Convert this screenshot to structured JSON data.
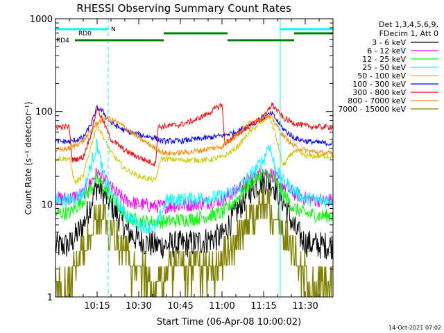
{
  "chart_data": {
    "type": "line",
    "title": "RHESSI Observing Summary Count Rates",
    "xlabel": "Start Time (06-Apr-08 10:00:02)",
    "ylabel": "Count Rate (s⁻¹ detector⁻¹)",
    "yscale": "log",
    "ylim": [
      1,
      1000
    ],
    "xlim_minutes": [
      0,
      100
    ],
    "y_ticks": [
      "1",
      "10",
      "100",
      "1000"
    ],
    "x_ticks": [
      {
        "label": "10:15",
        "minute": 15
      },
      {
        "label": "10:30",
        "minute": 30
      },
      {
        "label": "10:45",
        "minute": 45
      },
      {
        "label": "11:00",
        "minute": 60
      },
      {
        "label": "11:15",
        "minute": 75
      },
      {
        "label": "11:30",
        "minute": 90
      }
    ],
    "legend_header": [
      "Det 1,3,4,5,6,9,",
      "FDecim 1, Att 0"
    ],
    "legend_position": "right",
    "grid": false,
    "series": [
      {
        "name": "3 - 6 keV",
        "color": "#000000",
        "x": [
          0,
          5,
          10,
          15,
          20,
          25,
          30,
          36,
          40,
          50,
          60,
          65,
          70,
          75,
          78,
          82,
          86,
          90,
          95,
          100
        ],
        "y": [
          3.5,
          3.6,
          6,
          16,
          10,
          5.5,
          4,
          3.6,
          3.6,
          3.8,
          4.5,
          8,
          14,
          18,
          17,
          11,
          5.5,
          3.8,
          3.6,
          3.6
        ]
      },
      {
        "name": "6 - 12 keV",
        "color": "#ff00ff",
        "x": [
          0,
          5,
          10,
          15,
          20,
          25,
          30,
          36,
          40,
          50,
          60,
          65,
          70,
          75,
          78,
          82,
          86,
          90,
          95,
          100
        ],
        "y": [
          11.5,
          11.5,
          13,
          22,
          15,
          11,
          10,
          9.5,
          9.5,
          10,
          11,
          14,
          19,
          22,
          21,
          16,
          13,
          11.5,
          11,
          11
        ]
      },
      {
        "name": "12 - 25 keV",
        "color": "#00ff00",
        "x": [
          0,
          5,
          10,
          15,
          20,
          25,
          30,
          36,
          40,
          50,
          60,
          65,
          70,
          75,
          78,
          82,
          86,
          90,
          95,
          100
        ],
        "y": [
          8,
          8,
          11,
          19,
          12,
          7.5,
          6.5,
          6.5,
          6.5,
          7,
          8,
          11,
          17,
          21,
          20,
          13,
          9,
          8,
          7.5,
          7.5
        ]
      },
      {
        "name": "25 - 50 keV",
        "color": "#00ffff",
        "x": [
          0,
          5,
          10,
          13,
          15,
          17,
          20,
          25,
          30,
          36,
          40,
          50,
          60,
          65,
          70,
          75,
          77,
          79,
          82,
          86,
          90,
          95,
          100
        ],
        "y": [
          11,
          11,
          13,
          28,
          45,
          22,
          13,
          8,
          6,
          5.5,
          11,
          11.5,
          12,
          14,
          20,
          30,
          45,
          25,
          18,
          14,
          11.5,
          11,
          11
        ]
      },
      {
        "name": "50 - 100 keV",
        "color": "#cccc00",
        "x": [
          0,
          5,
          7,
          10,
          13,
          15,
          17,
          20,
          25,
          30,
          36,
          38,
          45,
          50,
          55,
          60,
          65,
          70,
          75,
          77,
          79,
          82,
          86,
          90,
          95,
          100
        ],
        "y": [
          31,
          31,
          17,
          20,
          45,
          72,
          55,
          36,
          24,
          20,
          18,
          31,
          30,
          30,
          30,
          32,
          40,
          60,
          80,
          90,
          60,
          26,
          38,
          33,
          33,
          33
        ]
      },
      {
        "name": "100 - 300 keV",
        "color": "#0000ff",
        "x": [
          0,
          5,
          10,
          13,
          15,
          17,
          20,
          25,
          30,
          36,
          38,
          45,
          50,
          55,
          60,
          65,
          70,
          75,
          78,
          82,
          86,
          90,
          95,
          100
        ],
        "y": [
          48,
          47,
          52,
          75,
          110,
          100,
          75,
          62,
          56,
          52,
          48,
          48,
          50,
          52,
          55,
          60,
          72,
          88,
          95,
          65,
          52,
          48,
          46,
          45
        ]
      },
      {
        "name": "300 - 800 keV",
        "color": "#ff0000",
        "x": [
          0,
          5,
          6,
          10,
          13,
          15,
          17,
          20,
          25,
          30,
          36,
          37,
          45,
          50,
          55,
          60,
          61,
          65,
          70,
          75,
          78,
          82,
          86,
          90,
          95,
          100
        ],
        "y": [
          68,
          68,
          30,
          32,
          60,
          110,
          80,
          50,
          38,
          32,
          27,
          68,
          72,
          80,
          95,
          120,
          45,
          55,
          70,
          85,
          120,
          85,
          75,
          70,
          68,
          68
        ]
      },
      {
        "name": "800 - 7000 keV",
        "color": "#ff8800",
        "x": [
          0,
          5,
          10,
          15,
          18,
          20,
          25,
          30,
          36,
          40,
          50,
          60,
          65,
          70,
          75,
          78,
          82,
          86,
          90,
          95,
          100
        ],
        "y": [
          38,
          40,
          48,
          75,
          85,
          82,
          68,
          52,
          40,
          35,
          37,
          42,
          55,
          75,
          90,
          85,
          55,
          42,
          38,
          36,
          35
        ]
      },
      {
        "name": "7000 - 15000 keV",
        "color": "#808000",
        "x": [
          0,
          5,
          10,
          15,
          20,
          25,
          30,
          36,
          40,
          50,
          60,
          65,
          70,
          75,
          78,
          82,
          86,
          90,
          95,
          100
        ],
        "y": [
          1.5,
          1.6,
          3,
          7,
          5,
          3,
          2,
          1.5,
          1.8,
          2,
          2.5,
          4,
          7,
          9,
          8,
          5,
          2.8,
          1.8,
          1.6,
          1.5
        ]
      }
    ],
    "event_lines": [
      {
        "minute": 19,
        "color": "#00ffff"
      },
      {
        "minute": 81,
        "color": "#00ffff"
      },
      {
        "minute": 100,
        "color": "#00ffff"
      }
    ],
    "solid_lines": [
      {
        "minute": 81,
        "color": "#00ffff"
      }
    ],
    "flag_bars": [
      {
        "label": "N",
        "color": "#00ffff",
        "row": 0,
        "segments": [
          [
            0,
            19
          ],
          [
            81,
            100
          ]
        ]
      },
      {
        "label": "RD0",
        "color": "#008000",
        "row": 1,
        "segments": [
          [
            39,
            62
          ],
          [
            86,
            100
          ]
        ]
      },
      {
        "label": "RD4",
        "color": "#008000",
        "row": 2,
        "segments": [
          [
            7,
            39
          ],
          [
            62,
            86
          ]
        ]
      }
    ],
    "footer_timestamp": "14-Oct-2021 07:02"
  }
}
